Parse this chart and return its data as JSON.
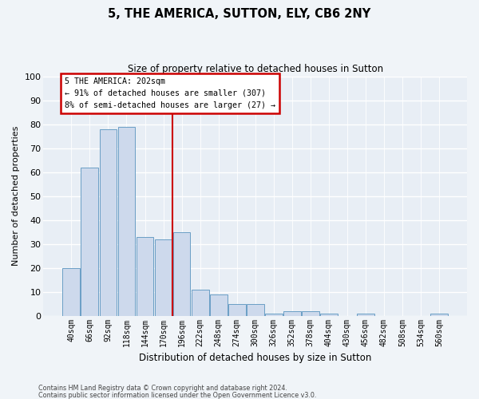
{
  "title": "5, THE AMERICA, SUTTON, ELY, CB6 2NY",
  "subtitle": "Size of property relative to detached houses in Sutton",
  "xlabel": "Distribution of detached houses by size in Sutton",
  "ylabel": "Number of detached properties",
  "categories": [
    "40sqm",
    "66sqm",
    "92sqm",
    "118sqm",
    "144sqm",
    "170sqm",
    "196sqm",
    "222sqm",
    "248sqm",
    "274sqm",
    "300sqm",
    "326sqm",
    "352sqm",
    "378sqm",
    "404sqm",
    "430sqm",
    "456sqm",
    "482sqm",
    "508sqm",
    "534sqm",
    "560sqm"
  ],
  "values": [
    20,
    62,
    78,
    79,
    33,
    32,
    35,
    11,
    9,
    5,
    5,
    1,
    2,
    2,
    1,
    0,
    1,
    0,
    0,
    0,
    1
  ],
  "bar_color": "#cdd9ec",
  "bar_edge_color": "#6a9ec5",
  "vline_index": 6,
  "annotation_title": "5 THE AMERICA: 202sqm",
  "annotation_line1": "← 91% of detached houses are smaller (307)",
  "annotation_line2": "8% of semi-detached houses are larger (27) →",
  "annotation_box_color": "#ffffff",
  "annotation_border_color": "#cc0000",
  "vline_color": "#cc0000",
  "ylim": [
    0,
    100
  ],
  "yticks": [
    0,
    10,
    20,
    30,
    40,
    50,
    60,
    70,
    80,
    90,
    100
  ],
  "background_color": "#e8eef5",
  "grid_color": "#ffffff",
  "fig_background": "#f0f4f8",
  "footer1": "Contains HM Land Registry data © Crown copyright and database right 2024.",
  "footer2": "Contains public sector information licensed under the Open Government Licence v3.0."
}
